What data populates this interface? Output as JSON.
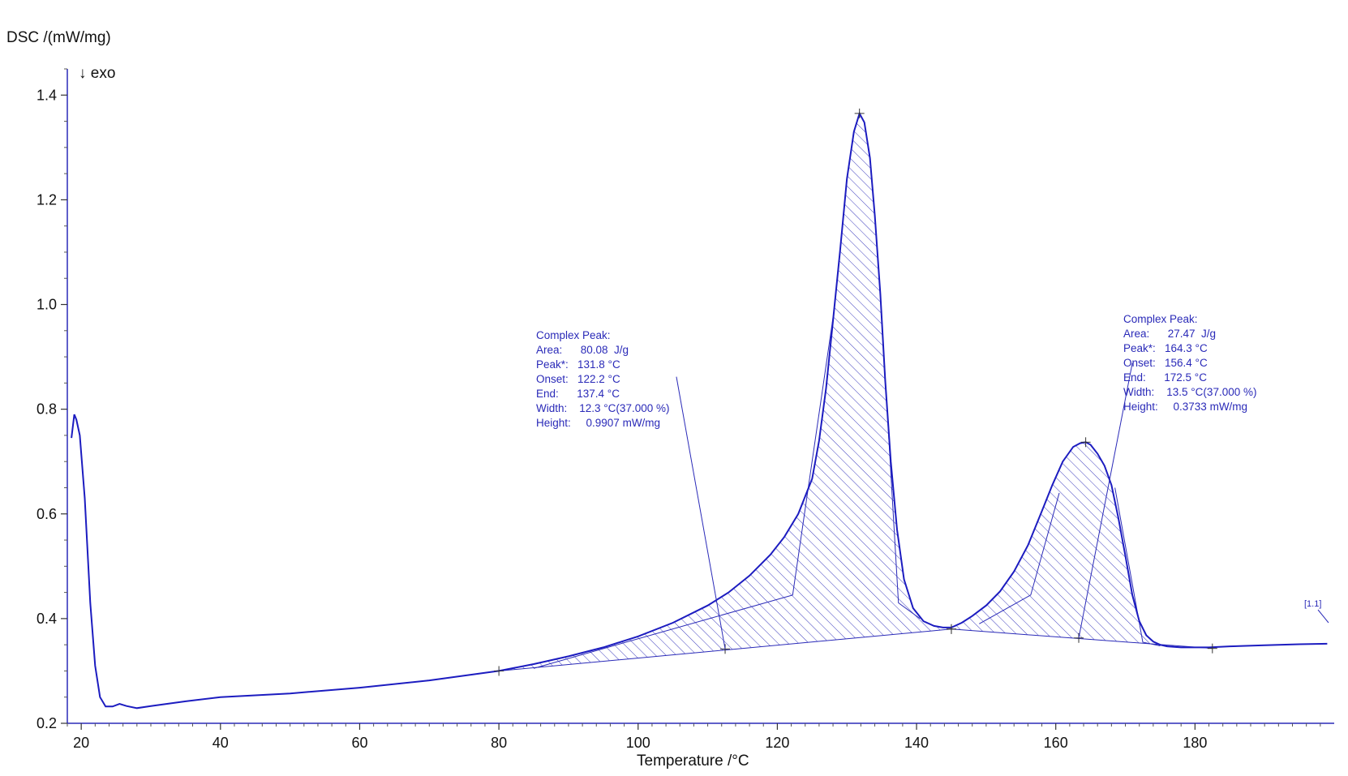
{
  "chart_data": {
    "type": "line",
    "ylabel": "DSC /(mW/mg)",
    "xlabel": "Temperature /°C",
    "direction_label": "↓ exo",
    "xlim": [
      18,
      200
    ],
    "ylim": [
      0.2,
      1.45
    ],
    "xticks": [
      20,
      40,
      60,
      80,
      100,
      120,
      140,
      160,
      180
    ],
    "xtick_labels": [
      "20",
      "40",
      "60",
      "80",
      "100",
      "120",
      "140",
      "160",
      "180"
    ],
    "yticks": [
      0.2,
      0.4,
      0.6,
      0.8,
      1.0,
      1.2,
      1.4
    ],
    "ytick_labels": [
      "0.2",
      "0.4",
      "0.6",
      "0.8",
      "1.0",
      "1.2",
      "1.4"
    ],
    "grid": false,
    "curve_color": "#1c1cc0",
    "series": [
      {
        "x": [
          18.6,
          19.0,
          19.3,
          19.8,
          20.5,
          21.3,
          22.0,
          22.7,
          23.5,
          24.5,
          25.5,
          26.5,
          28,
          30,
          35,
          40,
          50,
          60,
          70,
          80,
          85,
          90,
          95,
          100,
          105,
          110,
          113,
          116,
          119,
          121,
          123,
          125,
          126,
          127,
          128,
          129,
          130,
          131,
          131.8,
          132.5,
          133.3,
          134,
          134.8,
          135.5,
          136.3,
          137.2,
          138.2,
          139.5,
          141,
          142.5,
          143.8,
          145,
          146.5,
          148,
          150,
          152,
          154,
          156,
          158,
          159.5,
          161,
          162.5,
          163.5,
          164.3,
          165,
          166,
          167,
          168,
          169,
          170,
          171,
          172,
          173,
          174,
          175,
          176,
          177,
          178,
          180,
          182,
          185,
          190,
          195,
          199
        ],
        "y": [
          0.745,
          0.79,
          0.78,
          0.75,
          0.63,
          0.43,
          0.31,
          0.25,
          0.232,
          0.232,
          0.237,
          0.233,
          0.229,
          0.233,
          0.242,
          0.25,
          0.257,
          0.268,
          0.282,
          0.3,
          0.313,
          0.328,
          0.345,
          0.366,
          0.392,
          0.425,
          0.45,
          0.482,
          0.522,
          0.556,
          0.6,
          0.667,
          0.74,
          0.84,
          0.97,
          1.1,
          1.24,
          1.33,
          1.365,
          1.348,
          1.28,
          1.17,
          1.02,
          0.855,
          0.7,
          0.57,
          0.475,
          0.42,
          0.395,
          0.386,
          0.383,
          0.383,
          0.392,
          0.405,
          0.425,
          0.452,
          0.49,
          0.54,
          0.605,
          0.655,
          0.7,
          0.728,
          0.735,
          0.737,
          0.732,
          0.715,
          0.692,
          0.655,
          0.592,
          0.52,
          0.445,
          0.395,
          0.368,
          0.356,
          0.35,
          0.347,
          0.346,
          0.345,
          0.345,
          0.345,
          0.347,
          0.349,
          0.351,
          0.352
        ]
      }
    ],
    "peaks": [
      {
        "baseline_start": {
          "x": 80,
          "y": 0.3
        },
        "baseline_end": {
          "x": 145,
          "y": 0.38
        },
        "onset_marker": {
          "x": 112.5,
          "y": 0.342
        },
        "peak_marker": {
          "x": 131.8,
          "y": 1.365
        },
        "onset_tangent": [
          {
            "x": 85,
            "y": 0.305
          },
          {
            "x": 122.2,
            "y": 0.445
          },
          {
            "x": 128,
            "y": 0.975
          }
        ],
        "end_tangent": [
          {
            "x": 134.8,
            "y": 1.02
          },
          {
            "x": 137.4,
            "y": 0.43
          },
          {
            "x": 140.5,
            "y": 0.4
          }
        ],
        "leader_from": {
          "x": 105.5,
          "y": 0.862
        },
        "leader_to": {
          "x": 112.5,
          "y": 0.342
        },
        "lines": [
          "Complex Peak:",
          "Area:      80.08  J/g",
          "Peak*:   131.8 °C",
          "Onset:   122.2 °C",
          "End:      137.4 °C",
          "Width:    12.3 °C(37.000 %)",
          "Height:     0.9907 mW/mg"
        ]
      },
      {
        "baseline_start": {
          "x": 145,
          "y": 0.38
        },
        "baseline_end": {
          "x": 182.5,
          "y": 0.343
        },
        "onset_marker": {
          "x": 163.3,
          "y": 0.363
        },
        "peak_marker": {
          "x": 164.3,
          "y": 0.737
        },
        "onset_tangent": [
          {
            "x": 149,
            "y": 0.39
          },
          {
            "x": 156.4,
            "y": 0.445
          },
          {
            "x": 160.5,
            "y": 0.64
          }
        ],
        "end_tangent": [
          {
            "x": 168.5,
            "y": 0.65
          },
          {
            "x": 172.5,
            "y": 0.355
          },
          {
            "x": 175,
            "y": 0.348
          }
        ],
        "leader_from": {
          "x": 171,
          "y": 0.888
        },
        "leader_to": {
          "x": 163.3,
          "y": 0.363
        },
        "lines": [
          "Complex Peak:",
          "Area:      27.47  J/g",
          "Peak*:   164.3 °C",
          "Onset:   156.4 °C",
          "End:      172.5 °C",
          "Width:    13.5 °C(37.000 %)",
          "Height:     0.3733 mW/mg"
        ]
      }
    ],
    "segment_label": "[1.1]"
  }
}
